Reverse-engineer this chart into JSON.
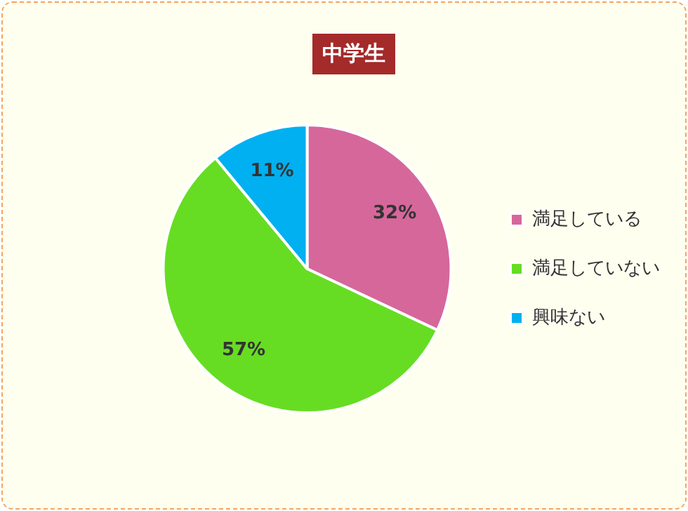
{
  "chart_data": {
    "type": "pie",
    "title": "中学生",
    "categories": [
      "満足している",
      "満足していない",
      "興味ない"
    ],
    "values": [
      32,
      57,
      11
    ],
    "colors": [
      "#d6679b",
      "#66dd22",
      "#00b0f0"
    ],
    "value_labels": [
      "32%",
      "57%",
      "11%"
    ],
    "legend": "right"
  }
}
